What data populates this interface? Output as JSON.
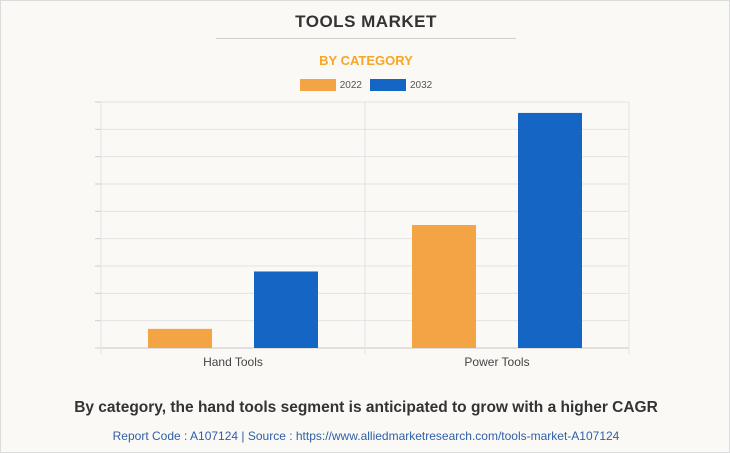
{
  "chart_data": {
    "type": "bar",
    "title": "TOOLS MARKET",
    "subtitle": "BY CATEGORY",
    "categories": [
      "Hand Tools",
      "Power Tools"
    ],
    "series": [
      {
        "name": "2022",
        "values": [
          7,
          45
        ],
        "color": "#f4a444"
      },
      {
        "name": "2032",
        "values": [
          28,
          86
        ],
        "color": "#1565c4"
      }
    ],
    "xlabel": "",
    "ylabel": "",
    "ylim": [
      0,
      90
    ],
    "grid": true,
    "legend_position": "top-center"
  },
  "footer": {
    "caption": "By category, the hand tools segment is anticipated to grow with a higher CAGR",
    "source": "Report Code : A107124  |  Source : https://www.alliedmarketresearch.com/tools-market-A107124"
  }
}
